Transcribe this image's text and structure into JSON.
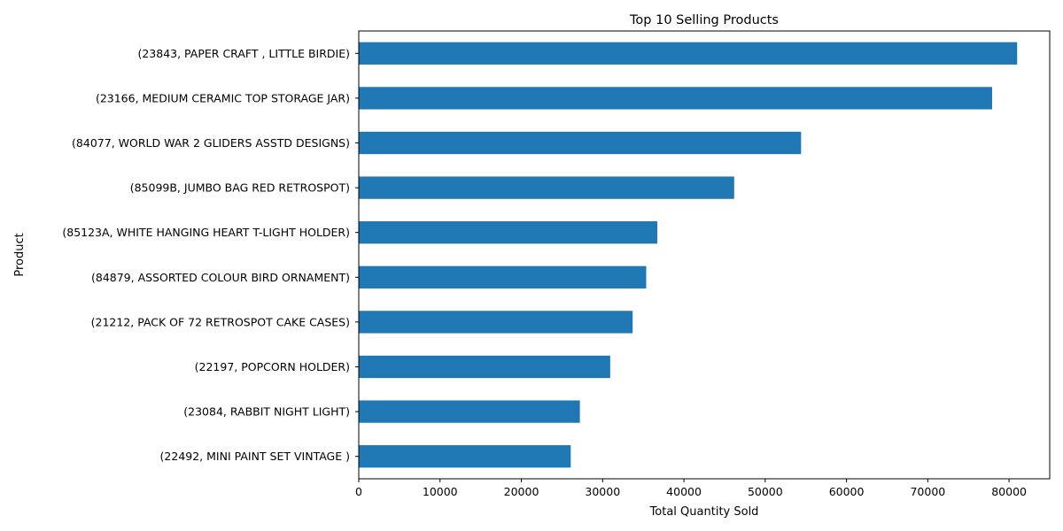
{
  "chart_data": {
    "type": "bar",
    "orientation": "horizontal",
    "title": "Top 10 Selling Products",
    "xlabel": "Total Quantity Sold",
    "ylabel": "Product",
    "xlim": [
      0,
      85000
    ],
    "xticks": [
      0,
      10000,
      20000,
      30000,
      40000,
      50000,
      60000,
      70000,
      80000
    ],
    "grid": false,
    "legend": "none",
    "bar_color": "#1f77b4",
    "categories": [
      "(23843, PAPER CRAFT , LITTLE BIRDIE)",
      "(23166, MEDIUM CERAMIC TOP STORAGE JAR)",
      "(84077, WORLD WAR 2 GLIDERS ASSTD DESIGNS)",
      "(85099B, JUMBO BAG RED RETROSPOT)",
      "(85123A, WHITE HANGING HEART T-LIGHT HOLDER)",
      "(84879, ASSORTED COLOUR BIRD ORNAMENT)",
      "(21212, PACK OF 72 RETROSPOT CAKE CASES)",
      "(22197, POPCORN HOLDER)",
      "(23084, RABBIT NIGHT LIGHT)",
      "(22492, MINI PAINT SET VINTAGE )"
    ],
    "values": [
      80995,
      77916,
      54415,
      46181,
      36725,
      35362,
      33693,
      30931,
      27202,
      26076
    ]
  }
}
